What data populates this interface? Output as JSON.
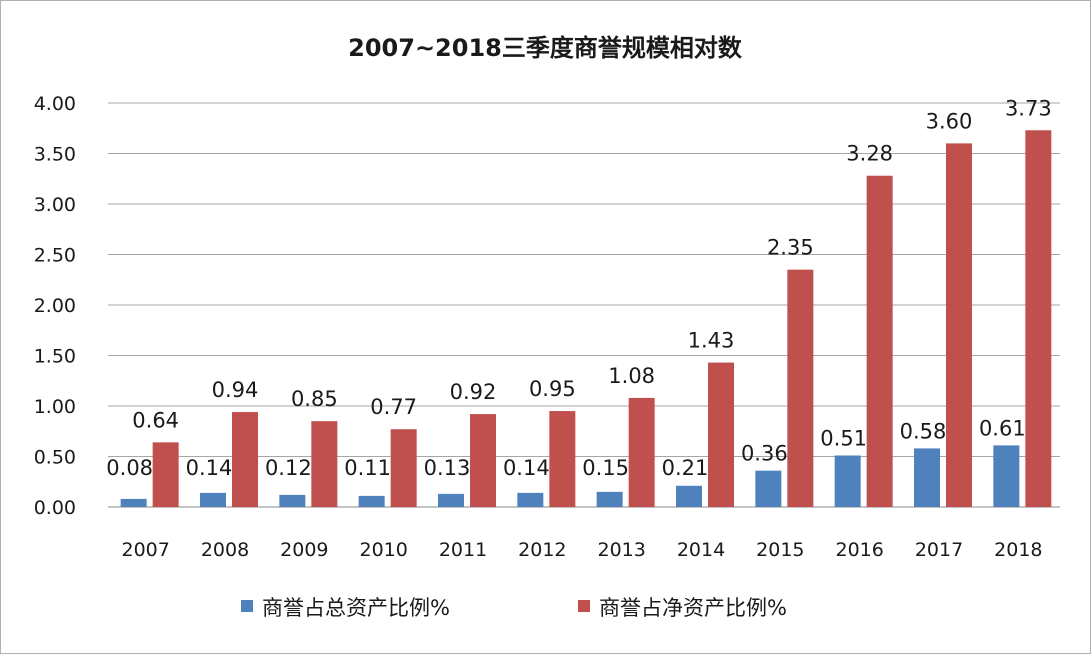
{
  "chart_data": {
    "type": "bar",
    "title": "2007~2018三季度商誉规模相对数",
    "categories": [
      "2007",
      "2008",
      "2009",
      "2010",
      "2011",
      "2012",
      "2013",
      "2014",
      "2015",
      "2016",
      "2017",
      "2018"
    ],
    "series": [
      {
        "name": "商誉占总资产比例%",
        "values": [
          0.08,
          0.14,
          0.12,
          0.11,
          0.13,
          0.14,
          0.15,
          0.21,
          0.36,
          0.51,
          0.58,
          0.61
        ],
        "labels": [
          "0.08",
          "0.14",
          "0.12",
          "0.11",
          "0.13",
          "0.14",
          "0.15",
          "0.21",
          "0.36",
          "0.51",
          "0.58",
          "0.61"
        ],
        "color": "#4f81bd"
      },
      {
        "name": "商誉占净资产比例%",
        "values": [
          0.64,
          0.94,
          0.85,
          0.77,
          0.92,
          0.95,
          1.08,
          1.43,
          2.35,
          3.28,
          3.6,
          3.73
        ],
        "labels": [
          "0.64",
          "0.94",
          "0.85",
          "0.77",
          "0.92",
          "0.95",
          "1.08",
          "1.43",
          "2.35",
          "3.28",
          "3.60",
          "3.73"
        ],
        "color": "#c0504d"
      }
    ],
    "yticks": [
      "0.00",
      "0.50",
      "1.00",
      "1.50",
      "2.00",
      "2.50",
      "3.00",
      "3.50",
      "4.00"
    ],
    "ylim": [
      0,
      4
    ],
    "grid": true,
    "legend_position": "bottom",
    "gridline_color": "#a6a6a6"
  }
}
